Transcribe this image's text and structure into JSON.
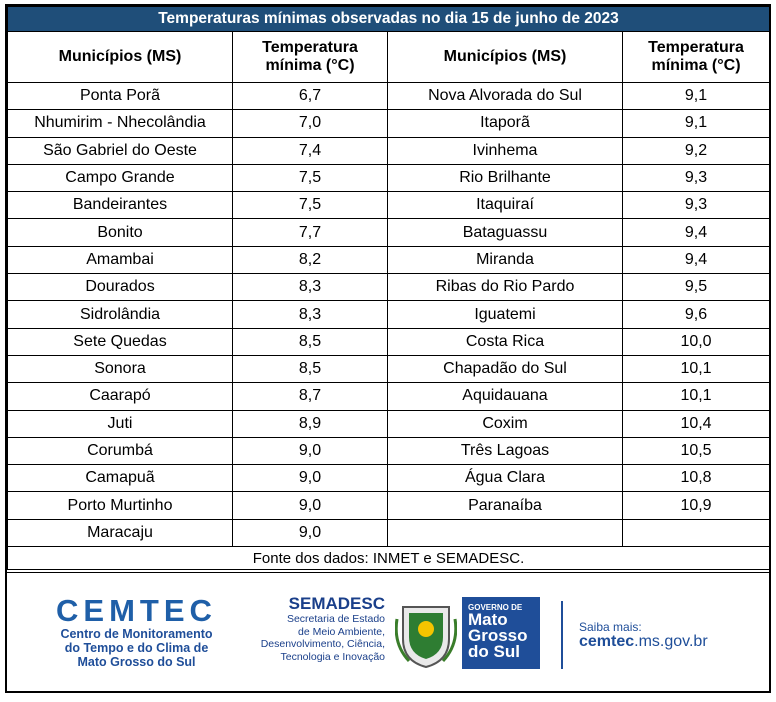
{
  "header": {
    "title": "Temperaturas mínimas observadas no dia 15 de junho de 2023"
  },
  "table": {
    "columns": [
      "Municípios (MS)",
      "Temperatura mínima (°C)",
      "Municípios (MS)",
      "Temperatura mínima (°C)"
    ],
    "left_rows": [
      [
        "Ponta Porã",
        "6,7"
      ],
      [
        "Nhumirim - Nhecolândia",
        "7,0"
      ],
      [
        "São Gabriel do Oeste",
        "7,4"
      ],
      [
        "Campo Grande",
        "7,5"
      ],
      [
        "Bandeirantes",
        "7,5"
      ],
      [
        "Bonito",
        "7,7"
      ],
      [
        "Amambai",
        "8,2"
      ],
      [
        "Dourados",
        "8,3"
      ],
      [
        "Sidrolândia",
        "8,3"
      ],
      [
        "Sete Quedas",
        "8,5"
      ],
      [
        "Sonora",
        "8,5"
      ],
      [
        "Caarapó",
        "8,7"
      ],
      [
        "Juti",
        "8,9"
      ],
      [
        "Corumbá",
        "9,0"
      ],
      [
        "Camapuã",
        "9,0"
      ],
      [
        "Porto Murtinho",
        "9,0"
      ],
      [
        "Maracaju",
        "9,0"
      ]
    ],
    "right_rows": [
      [
        "Nova Alvorada do Sul",
        "9,1"
      ],
      [
        "Itaporã",
        "9,1"
      ],
      [
        "Ivinhema",
        "9,2"
      ],
      [
        "Rio Brilhante",
        "9,3"
      ],
      [
        "Itaquiraí",
        "9,3"
      ],
      [
        "Bataguassu",
        "9,4"
      ],
      [
        "Miranda",
        "9,4"
      ],
      [
        "Ribas do Rio Pardo",
        "9,5"
      ],
      [
        "Iguatemi",
        "9,6"
      ],
      [
        "Costa Rica",
        "10,0"
      ],
      [
        "Chapadão do Sul",
        "10,1"
      ],
      [
        "Aquidauana",
        "10,1"
      ],
      [
        "Coxim",
        "10,4"
      ],
      [
        "Três Lagoas",
        "10,5"
      ],
      [
        "Água Clara",
        "10,8"
      ],
      [
        "Paranaíba",
        "10,9"
      ]
    ],
    "source": "Fonte dos dados: INMET e SEMADESC."
  },
  "footer": {
    "cemtec": {
      "name": "CEMTEC",
      "lines": [
        "Centro de Monitoramento",
        "do Tempo e do Clima de",
        "Mato Grosso do Sul"
      ]
    },
    "semadesc": {
      "name": "SEMADESC",
      "lines": [
        "Secretaria de Estado",
        "de Meio Ambiente,",
        "Desenvolvimento, Ciência,",
        "Tecnologia e Inovação"
      ]
    },
    "governo": {
      "top": "GOVERNO DE",
      "lines": [
        "Mato",
        "Grosso",
        "do Sul"
      ]
    },
    "link": {
      "label": "Saiba mais:",
      "bold": "cemtec",
      "rest": ".ms.gov.br"
    }
  }
}
